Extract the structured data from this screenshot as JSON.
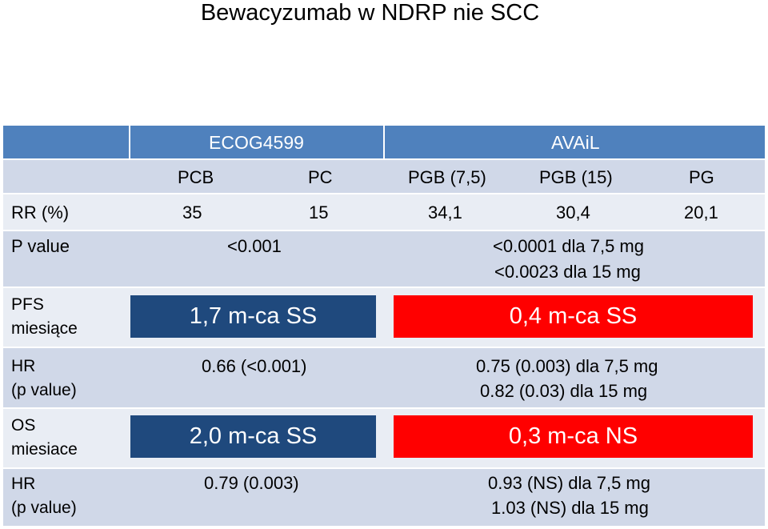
{
  "title": "Bewacyzumab w NDRP nie SCC",
  "header": {
    "group1": "ECOG4599",
    "group2": "AVAiL"
  },
  "columns": [
    "PCB",
    "PC",
    "PGB (7,5)",
    "PGB (15)",
    "PG"
  ],
  "rr": {
    "label": "RR (%)",
    "values": [
      "35",
      "15",
      "34,1",
      "30,4",
      "20,1"
    ]
  },
  "pvalue": {
    "label": "P value",
    "ecog": "<0.001",
    "avail_line1": "<0.0001 dla 7,5 mg",
    "avail_line2": "<0.0023 dla 15 mg"
  },
  "pfs": {
    "label_line1": "PFS",
    "label_line2": "miesiące",
    "ecog_bar": "1,7 m-ca SS",
    "avail_bar": "0,4 m-ca SS"
  },
  "hr1": {
    "label_line1": "HR",
    "label_line2": "(p value)",
    "ecog": "0.66 (<0.001)",
    "avail_line1": "0.75 (0.003) dla 7,5 mg",
    "avail_line2": "0.82 (0.03) dla 15 mg"
  },
  "os": {
    "label_line1": "OS",
    "label_line2": "miesiace",
    "ecog_bar": "2,0 m-ca SS",
    "avail_bar": "0,3 m-ca NS"
  },
  "hr2": {
    "label_line1": "HR",
    "label_line2": "(p value)",
    "ecog": "0.79 (0.003)",
    "avail_line1": "0.93 (NS) dla 7,5 mg",
    "avail_line2": "1.03 (NS) dla 15 mg"
  },
  "colors": {
    "header": "#4f81bd",
    "band_dark": "#d0d8e8",
    "band_light": "#e9edf4",
    "bar_blue": "#1f497d",
    "bar_red": "#ff0000"
  }
}
